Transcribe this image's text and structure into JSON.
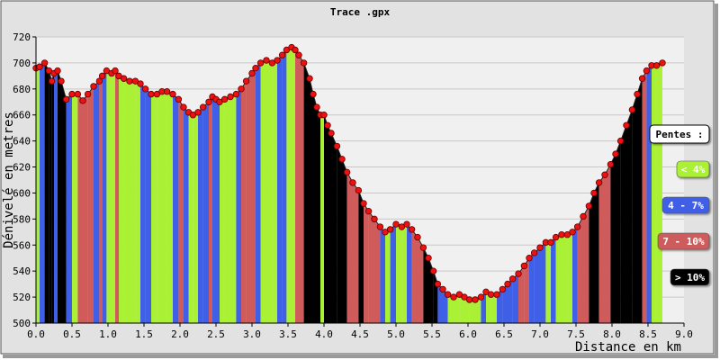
{
  "chart_data": {
    "type": "area",
    "title": "Trace .gpx",
    "xlabel": "Distance en km",
    "ylabel": "Dénivelé en metres",
    "xlim": [
      0,
      9
    ],
    "ylim": [
      500,
      720
    ],
    "x_ticks": [
      "0.0",
      "0.5",
      "1.0",
      "1.5",
      "2.0",
      "2.5",
      "3.0",
      "3.5",
      "4.0",
      "4.5",
      "5.0",
      "5.5",
      "6.0",
      "6.5",
      "7.0",
      "7.5",
      "8.0",
      "8.5",
      "9.0"
    ],
    "y_ticks": [
      "500",
      "520",
      "540",
      "560",
      "580",
      "600",
      "620",
      "640",
      "660",
      "680",
      "700",
      "720"
    ],
    "grid": true,
    "colors": {
      "plot_background": "#f0f0f0",
      "frame_background": "#e2e2e2",
      "grid": "#c8c8c8",
      "marker": "#ee1111",
      "marker_edge": "#660000",
      "slope_lt4": "#aaf034",
      "slope_4_7": "#3f5fe6",
      "slope_7_10": "#cf5b5b",
      "slope_gt10": "#000000"
    },
    "legend": {
      "title": "Pentes :",
      "placement": "right",
      "entries": [
        {
          "label": "< 4%",
          "color": "#aaf034",
          "text_color": "#ffffff"
        },
        {
          "label": "4 - 7%",
          "color": "#3f5fe6",
          "text_color": "#ffffff"
        },
        {
          "label": "7 - 10%",
          "color": "#cf5b5b",
          "text_color": "#ffffff"
        },
        {
          "label": "> 10%",
          "color": "#000000",
          "text_color": "#ffffff"
        }
      ]
    },
    "series": [
      {
        "points": [
          [
            0.0,
            696
          ],
          [
            0.05,
            697
          ],
          [
            0.12,
            700
          ],
          [
            0.18,
            694
          ],
          [
            0.22,
            686
          ],
          [
            0.25,
            692
          ],
          [
            0.3,
            694
          ],
          [
            0.35,
            686
          ],
          [
            0.42,
            672
          ],
          [
            0.5,
            676
          ],
          [
            0.58,
            676
          ],
          [
            0.65,
            671
          ],
          [
            0.72,
            676
          ],
          [
            0.8,
            682
          ],
          [
            0.88,
            686
          ],
          [
            0.92,
            690
          ],
          [
            0.98,
            694
          ],
          [
            1.05,
            692
          ],
          [
            1.1,
            694
          ],
          [
            1.15,
            690
          ],
          [
            1.22,
            688
          ],
          [
            1.3,
            686
          ],
          [
            1.38,
            686
          ],
          [
            1.45,
            684
          ],
          [
            1.52,
            680
          ],
          [
            1.6,
            676
          ],
          [
            1.68,
            676
          ],
          [
            1.75,
            678
          ],
          [
            1.82,
            678
          ],
          [
            1.9,
            676
          ],
          [
            1.98,
            672
          ],
          [
            2.05,
            666
          ],
          [
            2.12,
            662
          ],
          [
            2.18,
            660
          ],
          [
            2.25,
            662
          ],
          [
            2.32,
            666
          ],
          [
            2.4,
            670
          ],
          [
            2.45,
            674
          ],
          [
            2.5,
            672
          ],
          [
            2.55,
            670
          ],
          [
            2.62,
            672
          ],
          [
            2.7,
            674
          ],
          [
            2.78,
            676
          ],
          [
            2.85,
            680
          ],
          [
            2.92,
            686
          ],
          [
            3.0,
            692
          ],
          [
            3.05,
            696
          ],
          [
            3.12,
            700
          ],
          [
            3.2,
            702
          ],
          [
            3.28,
            700
          ],
          [
            3.35,
            702
          ],
          [
            3.42,
            706
          ],
          [
            3.48,
            710
          ],
          [
            3.55,
            712
          ],
          [
            3.6,
            710
          ],
          [
            3.65,
            706
          ],
          [
            3.72,
            700
          ],
          [
            3.8,
            688
          ],
          [
            3.85,
            676
          ],
          [
            3.9,
            666
          ],
          [
            3.95,
            660
          ],
          [
            4.0,
            660
          ],
          [
            4.05,
            652
          ],
          [
            4.1,
            646
          ],
          [
            4.18,
            636
          ],
          [
            4.25,
            626
          ],
          [
            4.32,
            616
          ],
          [
            4.4,
            608
          ],
          [
            4.48,
            602
          ],
          [
            4.55,
            592
          ],
          [
            4.62,
            586
          ],
          [
            4.7,
            580
          ],
          [
            4.78,
            574
          ],
          [
            4.85,
            570
          ],
          [
            4.92,
            572
          ],
          [
            5.0,
            576
          ],
          [
            5.08,
            574
          ],
          [
            5.15,
            576
          ],
          [
            5.22,
            572
          ],
          [
            5.3,
            566
          ],
          [
            5.38,
            558
          ],
          [
            5.45,
            550
          ],
          [
            5.52,
            540
          ],
          [
            5.58,
            530
          ],
          [
            5.65,
            526
          ],
          [
            5.72,
            522
          ],
          [
            5.8,
            520
          ],
          [
            5.88,
            522
          ],
          [
            5.95,
            520
          ],
          [
            6.02,
            518
          ],
          [
            6.1,
            518
          ],
          [
            6.18,
            520
          ],
          [
            6.25,
            524
          ],
          [
            6.32,
            522
          ],
          [
            6.4,
            522
          ],
          [
            6.48,
            526
          ],
          [
            6.55,
            530
          ],
          [
            6.62,
            534
          ],
          [
            6.7,
            538
          ],
          [
            6.78,
            544
          ],
          [
            6.85,
            550
          ],
          [
            6.92,
            554
          ],
          [
            7.0,
            558
          ],
          [
            7.08,
            562
          ],
          [
            7.15,
            562
          ],
          [
            7.22,
            566
          ],
          [
            7.3,
            568
          ],
          [
            7.38,
            568
          ],
          [
            7.45,
            570
          ],
          [
            7.52,
            574
          ],
          [
            7.6,
            582
          ],
          [
            7.68,
            590
          ],
          [
            7.75,
            600
          ],
          [
            7.82,
            608
          ],
          [
            7.9,
            614
          ],
          [
            7.98,
            622
          ],
          [
            8.05,
            630
          ],
          [
            8.12,
            640
          ],
          [
            8.2,
            652
          ],
          [
            8.28,
            664
          ],
          [
            8.35,
            676
          ],
          [
            8.42,
            688
          ],
          [
            8.48,
            694
          ],
          [
            8.55,
            698
          ],
          [
            8.62,
            698
          ],
          [
            8.7,
            700
          ]
        ]
      }
    ]
  }
}
